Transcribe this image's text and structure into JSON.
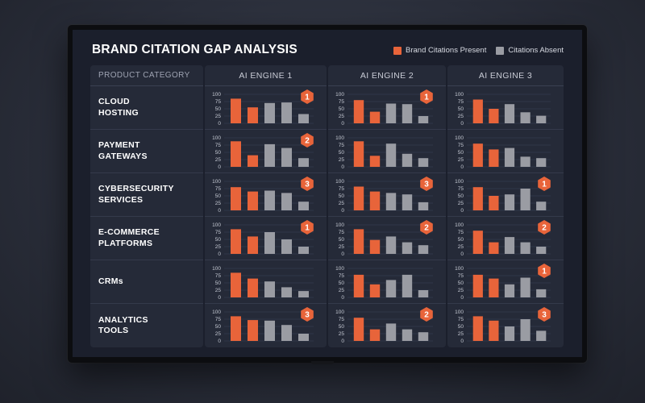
{
  "title": "BRAND CITATION GAP ANALYSIS",
  "legend": [
    {
      "label": "Brand Citations Present",
      "color": "#e8643a"
    },
    {
      "label": "Citations Absent",
      "color": "#9a9ca3"
    }
  ],
  "colors": {
    "present": "#e8643a",
    "absent": "#9a9ca3",
    "badge": "#e8643a"
  },
  "table": {
    "category_header": "PRODUCT CATEGORY",
    "engines": [
      "AI ENGINE 1",
      "AI ENGINE 2",
      "AI ENGINE 3"
    ]
  },
  "chart_data": {
    "type": "bar",
    "title": "BRAND CITATION GAP ANALYSIS",
    "ylim": [
      0,
      100
    ],
    "yticks": [
      0,
      25,
      50,
      75,
      100
    ],
    "series_names": [
      "Brand Citations Present",
      "Citations Absent"
    ],
    "bar_series_pattern": [
      "present",
      "present",
      "absent",
      "absent",
      "absent"
    ],
    "rows": [
      {
        "category": "CLOUD\nHOSTING",
        "engines": [
          {
            "values": [
              85,
              55,
              70,
              72,
              32
            ],
            "badge": "1"
          },
          {
            "values": [
              80,
              40,
              68,
              66,
              25
            ],
            "badge": "1"
          },
          {
            "values": [
              82,
              50,
              66,
              38,
              26
            ],
            "badge": null
          }
        ]
      },
      {
        "category": "PAYMENT\nGATEWAYS",
        "engines": [
          {
            "values": [
              88,
              40,
              78,
              65,
              30
            ],
            "badge": "2"
          },
          {
            "values": [
              88,
              38,
              80,
              45,
              30
            ],
            "badge": null
          },
          {
            "values": [
              80,
              60,
              65,
              35,
              30
            ],
            "badge": null
          }
        ]
      },
      {
        "category": "CYBERSECURITY\nSERVICES",
        "engines": [
          {
            "values": [
              80,
              65,
              68,
              60,
              30
            ],
            "badge": "3"
          },
          {
            "values": [
              82,
              65,
              60,
              55,
              28
            ],
            "badge": "3"
          },
          {
            "values": [
              80,
              50,
              55,
              75,
              30
            ],
            "badge": "1"
          }
        ]
      },
      {
        "category": "E-COMMERCE\nPLATFORMS",
        "engines": [
          {
            "values": [
              85,
              60,
              75,
              50,
              25
            ],
            "badge": "1"
          },
          {
            "values": [
              85,
              48,
              60,
              40,
              30
            ],
            "badge": "2"
          },
          {
            "values": [
              80,
              40,
              58,
              40,
              25
            ],
            "badge": "2"
          }
        ]
      },
      {
        "category": "CRMs",
        "engines": [
          {
            "values": [
              85,
              65,
              55,
              35,
              22
            ],
            "badge": null
          },
          {
            "values": [
              78,
              45,
              60,
              78,
              25
            ],
            "badge": null
          },
          {
            "values": [
              78,
              65,
              45,
              68,
              28
            ],
            "badge": "1"
          }
        ]
      },
      {
        "category": "ANALYTICS\nTOOLS",
        "engines": [
          {
            "values": [
              85,
              72,
              70,
              55,
              25
            ],
            "badge": "3"
          },
          {
            "values": [
              80,
              40,
              60,
              40,
              30
            ],
            "badge": "2"
          },
          {
            "values": [
              85,
              70,
              50,
              75,
              35
            ],
            "badge": "3"
          }
        ]
      }
    ]
  }
}
